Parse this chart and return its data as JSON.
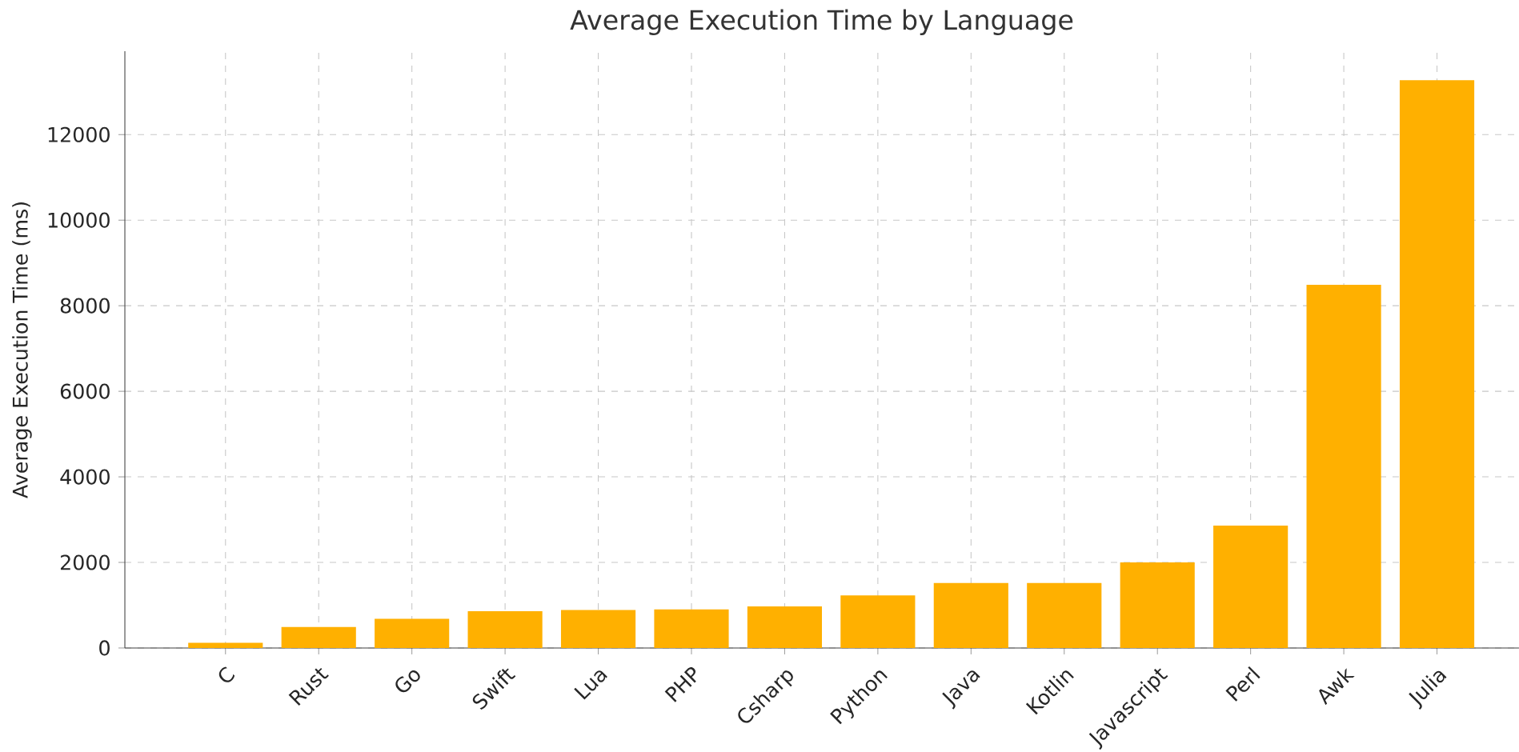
{
  "chart_data": {
    "type": "bar",
    "title": "Average Execution Time by Language",
    "ylabel": "Average Execution Time (ms)",
    "categories": [
      "C",
      "Rust",
      "Go",
      "Swift",
      "Lua",
      "PHP",
      "Csharp",
      "Python",
      "Java",
      "Kotlin",
      "Javascript",
      "Perl",
      "Awk",
      "Julia"
    ],
    "values": [
      120,
      490,
      680,
      860,
      890,
      900,
      970,
      1230,
      1520,
      1520,
      2000,
      2860,
      8490,
      13270
    ],
    "color": "#ffb000",
    "ylim": [
      0,
      13950
    ],
    "yticks": [
      0,
      2000,
      4000,
      6000,
      8000,
      10000,
      12000
    ],
    "grid": true
  }
}
